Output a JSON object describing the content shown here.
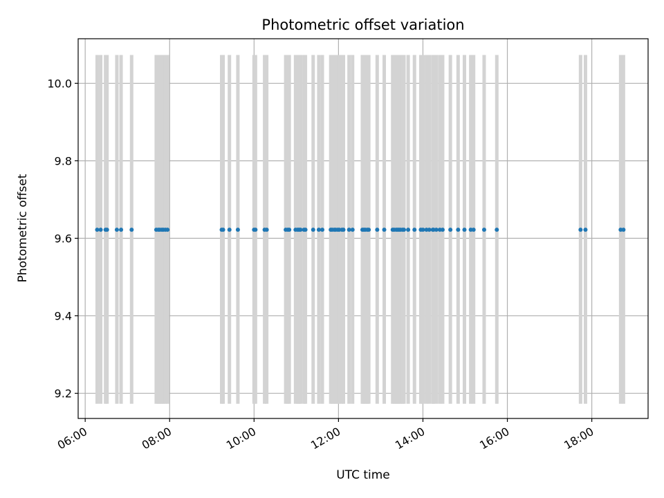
{
  "chart_data": {
    "type": "scatter",
    "title": "Photometric offset variation",
    "xlabel": "UTC time",
    "ylabel": "Photometric offset",
    "xlim": [
      "05:50",
      "19:20"
    ],
    "ylim": [
      9.135,
      10.115
    ],
    "grid": true,
    "xticks": [
      "06:00",
      "08:00",
      "10:00",
      "12:00",
      "14:00",
      "16:00",
      "18:00"
    ],
    "yticks": [
      9.2,
      9.4,
      9.6,
      9.8,
      10.0
    ],
    "ytick_labels": [
      "9.2",
      "9.4",
      "9.6",
      "9.8",
      "10.0"
    ],
    "error_range": [
      9.173,
      10.073
    ],
    "error_bar_color": "#d3d3d3",
    "point_color": "#1f77b4",
    "series": [
      {
        "y": 9.622,
        "x": [
          "06:17",
          "06:22",
          "06:29",
          "06:31",
          "06:45",
          "06:51",
          "07:06",
          "07:41",
          "07:44",
          "07:46",
          "07:49",
          "07:51",
          "07:54",
          "07:57",
          "09:14",
          "09:16",
          "09:25",
          "09:37",
          "10:00",
          "10:02",
          "10:15",
          "10:18",
          "10:45",
          "10:48",
          "10:50",
          "10:59",
          "11:02",
          "11:04",
          "11:06",
          "11:11",
          "11:13",
          "11:24",
          "11:32",
          "11:37",
          "11:49",
          "11:51",
          "11:54",
          "11:56",
          "11:59",
          "12:01",
          "12:05",
          "12:07",
          "12:15",
          "12:20",
          "12:34",
          "12:36",
          "12:38",
          "12:41",
          "12:43",
          "12:55",
          "13:05",
          "13:17",
          "13:19",
          "13:22",
          "13:24",
          "13:26",
          "13:28",
          "13:31",
          "13:33",
          "13:39",
          "13:48",
          "13:57",
          "14:00",
          "14:05",
          "14:09",
          "14:14",
          "14:15",
          "14:19",
          "14:24",
          "14:28",
          "14:39",
          "14:50",
          "14:59",
          "15:08",
          "15:12",
          "15:27",
          "15:45",
          "17:44",
          "17:51",
          "18:41",
          "18:45"
        ]
      }
    ]
  }
}
